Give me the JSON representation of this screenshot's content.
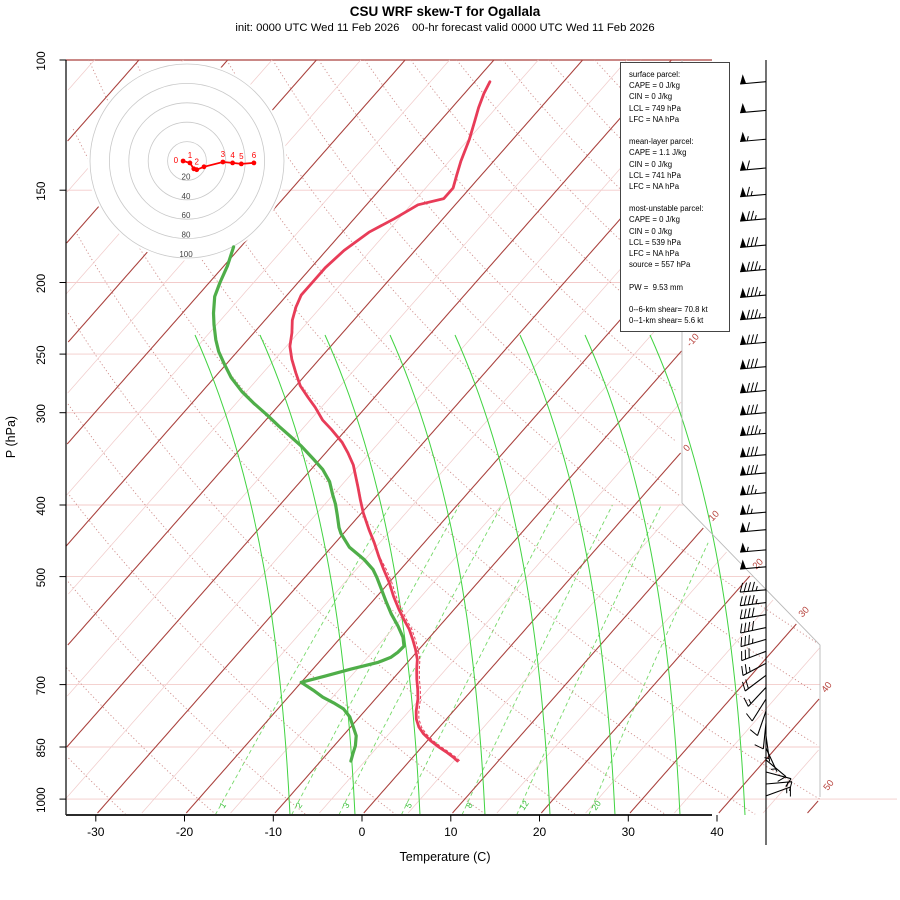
{
  "title": "CSU WRF skew-T for Ogallala",
  "subtitle": "init: 0000 UTC Wed 11 Feb 2026    00-hr forecast valid 0000 UTC Wed 11 Feb 2026",
  "axes": {
    "x_label": "Temperature (C)",
    "y_label": "P (hPa)",
    "temp_ticks": [
      -30,
      -20,
      -10,
      0,
      10,
      20,
      30,
      40
    ],
    "pressure_ticks": [
      100,
      150,
      200,
      250,
      300,
      400,
      500,
      700,
      850,
      1000
    ],
    "isotherm_edge_labels": [
      -10,
      0,
      10,
      20,
      30,
      40,
      50
    ],
    "mixing_ratio_labels": [
      1,
      2,
      3,
      5,
      8,
      12,
      20
    ]
  },
  "parcel_info": {
    "sections": [
      {
        "title": "surface parcel:",
        "lines": [
          "CAPE = 0 J/kg",
          "CIN = 0 J/kg",
          "LCL = 749 hPa",
          "LFC = NA hPa"
        ]
      },
      {
        "title": "mean-layer parcel:",
        "lines": [
          "CAPE = 1.1 J/kg",
          "CIN = 0 J/kg",
          "LCL = 741 hPa",
          "LFC = NA hPa"
        ]
      },
      {
        "title": "most-unstable parcel:",
        "lines": [
          "CAPE = 0 J/kg",
          "CIN = 0 J/kg",
          "LCL = 539 hPa",
          "LFC = NA hPa",
          "source = 557 hPa"
        ]
      }
    ],
    "pw": "PW =  9.53 mm",
    "shear_lines": [
      "0--6-km shear= 70.8 kt",
      "0--1-km shear= 5.6 kt"
    ]
  },
  "hodograph": {
    "ring_labels": [
      20,
      40,
      60,
      80,
      100
    ],
    "trace": {
      "u": [
        -4,
        3,
        7,
        10,
        17.5,
        37,
        47,
        56,
        69
      ],
      "v": [
        0,
        -2,
        -8,
        -9,
        -6,
        -1,
        -2,
        -3,
        -2
      ]
    },
    "point_labels": [
      {
        "text": "0",
        "u": -4,
        "v": 0
      },
      {
        "text": "1",
        "u": 3,
        "v": -2
      },
      {
        "text": "2",
        "u": 10,
        "v": -9
      },
      {
        "text": "3",
        "u": 37,
        "v": -1
      },
      {
        "text": "4",
        "u": 47,
        "v": -2
      },
      {
        "text": "5",
        "u": 56,
        "v": -3
      },
      {
        "text": "6",
        "u": 69,
        "v": -2
      }
    ]
  },
  "chart_data": {
    "type": "line",
    "title": "CSU WRF skew-T for Ogallala",
    "xlabel": "Temperature (C)",
    "ylabel": "P (hPa)",
    "x_range_c": [
      -30,
      40
    ],
    "p_range_hpa": [
      100,
      1050
    ],
    "temperature_profile": {
      "pressure_hpa": [
        107,
        111,
        116,
        121,
        128,
        137,
        143,
        149,
        154,
        157,
        164,
        171,
        181,
        191,
        200,
        208,
        216,
        225,
        234,
        244,
        254,
        265,
        276,
        286,
        295,
        307,
        316,
        329,
        340,
        353,
        378,
        394,
        410,
        432,
        450,
        470,
        489,
        509,
        532,
        554,
        571,
        589,
        608,
        627,
        647,
        667,
        688,
        710,
        732,
        760,
        779,
        799,
        816,
        834,
        850,
        863,
        877,
        888
      ],
      "temp_c": [
        -58.3,
        -57.8,
        -57,
        -56.1,
        -54.9,
        -53.7,
        -52.8,
        -51.9,
        -51.9,
        -54.2,
        -55.5,
        -57,
        -58,
        -58.4,
        -58.4,
        -58.4,
        -57.8,
        -56.9,
        -55.7,
        -54.6,
        -53.1,
        -51.3,
        -49.5,
        -47.5,
        -45.7,
        -43.6,
        -41.7,
        -39.2,
        -37.5,
        -35.7,
        -33,
        -31.4,
        -29.8,
        -27.5,
        -25.6,
        -23.7,
        -21.9,
        -20,
        -18.1,
        -16.2,
        -14.7,
        -13.1,
        -11.7,
        -10.4,
        -9.2,
        -8.3,
        -7.3,
        -6.2,
        -5.2,
        -4.2,
        -3.4,
        -2.3,
        -1.1,
        0.4,
        1.9,
        3.2,
        4.5,
        5.4
      ]
    },
    "dewpoint_profile": {
      "pressure_hpa": [
        179,
        190,
        200,
        209,
        220,
        228,
        239,
        248,
        258,
        269,
        281,
        291,
        302,
        313,
        323,
        333,
        347,
        358,
        372,
        387,
        399,
        413,
        429,
        437,
        456,
        474,
        489,
        501,
        520,
        541,
        562,
        583,
        604,
        621,
        633,
        643,
        653,
        667,
        682,
        695,
        712,
        728,
        741,
        755,
        774,
        799,
        821,
        847,
        868,
        888
      ],
      "temp_c": [
        -70.8,
        -69.6,
        -68.8,
        -68,
        -66.5,
        -65.3,
        -63.6,
        -62.1,
        -60.2,
        -58.1,
        -55.5,
        -53.1,
        -50.4,
        -47.9,
        -45.6,
        -43.4,
        -40.7,
        -38.7,
        -36.7,
        -35.1,
        -33.8,
        -32.5,
        -31.1,
        -30.3,
        -28,
        -25.1,
        -23.1,
        -21.9,
        -20.2,
        -18.4,
        -16.6,
        -14.7,
        -13,
        -12,
        -12.1,
        -12.4,
        -13.3,
        -15.7,
        -18,
        -20,
        -17.9,
        -16.1,
        -14.3,
        -12.6,
        -11.1,
        -9.7,
        -8.5,
        -7.6,
        -7.1,
        -6.6
      ]
    },
    "virtual_temperature_dashed": true,
    "wind_barbs_kt": [
      {
        "p": 107,
        "spd": 50,
        "dir": 265
      },
      {
        "p": 117,
        "spd": 50,
        "dir": 265
      },
      {
        "p": 128,
        "spd": 55,
        "dir": 265
      },
      {
        "p": 140,
        "spd": 60,
        "dir": 265
      },
      {
        "p": 152,
        "spd": 65,
        "dir": 265
      },
      {
        "p": 164,
        "spd": 75,
        "dir": 265
      },
      {
        "p": 178,
        "spd": 80,
        "dir": 265
      },
      {
        "p": 192,
        "spd": 85,
        "dir": 265
      },
      {
        "p": 208,
        "spd": 85,
        "dir": 265
      },
      {
        "p": 223,
        "spd": 85,
        "dir": 265
      },
      {
        "p": 241,
        "spd": 80,
        "dir": 265
      },
      {
        "p": 260,
        "spd": 80,
        "dir": 265
      },
      {
        "p": 280,
        "spd": 80,
        "dir": 265
      },
      {
        "p": 300,
        "spd": 80,
        "dir": 265
      },
      {
        "p": 320,
        "spd": 85,
        "dir": 265
      },
      {
        "p": 342,
        "spd": 80,
        "dir": 265
      },
      {
        "p": 362,
        "spd": 80,
        "dir": 265
      },
      {
        "p": 385,
        "spd": 75,
        "dir": 265
      },
      {
        "p": 409,
        "spd": 65,
        "dir": 265
      },
      {
        "p": 432,
        "spd": 60,
        "dir": 265
      },
      {
        "p": 460,
        "spd": 55,
        "dir": 265
      },
      {
        "p": 485,
        "spd": 50,
        "dir": 265
      },
      {
        "p": 521,
        "spd": 45,
        "dir": 265
      },
      {
        "p": 542,
        "spd": 45,
        "dir": 263
      },
      {
        "p": 563,
        "spd": 40,
        "dir": 261
      },
      {
        "p": 586,
        "spd": 40,
        "dir": 258
      },
      {
        "p": 608,
        "spd": 35,
        "dir": 254
      },
      {
        "p": 631,
        "spd": 30,
        "dir": 249
      },
      {
        "p": 655,
        "spd": 25,
        "dir": 242
      },
      {
        "p": 680,
        "spd": 20,
        "dir": 233
      },
      {
        "p": 706,
        "spd": 15,
        "dir": 223
      },
      {
        "p": 732,
        "spd": 10,
        "dir": 212
      },
      {
        "p": 760,
        "spd": 10,
        "dir": 199
      },
      {
        "p": 789,
        "spd": 10,
        "dir": 186
      },
      {
        "p": 821,
        "spd": 5,
        "dir": 172
      },
      {
        "p": 853,
        "spd": 5,
        "dir": 155
      },
      {
        "p": 885,
        "spd": 10,
        "dir": 130
      },
      {
        "p": 919,
        "spd": 10,
        "dir": 105
      },
      {
        "p": 954,
        "spd": 15,
        "dir": 85
      },
      {
        "p": 990,
        "spd": 15,
        "dir": 70
      }
    ]
  },
  "colors": {
    "temperature": "#e83c58",
    "dewpoint": "#4fae49",
    "isotherm": "#aa423e",
    "isotherm_minor": "#f1cdcc",
    "pressure_line": "#f3cbca",
    "dry_adiabat": "#cf8d8a",
    "moist_adiabat": "#41d341",
    "mixing_ratio": "#76d969",
    "hodograph_ring": "#c9c9c9",
    "hodograph_trace": "#ff0000",
    "barb": "#000000"
  }
}
